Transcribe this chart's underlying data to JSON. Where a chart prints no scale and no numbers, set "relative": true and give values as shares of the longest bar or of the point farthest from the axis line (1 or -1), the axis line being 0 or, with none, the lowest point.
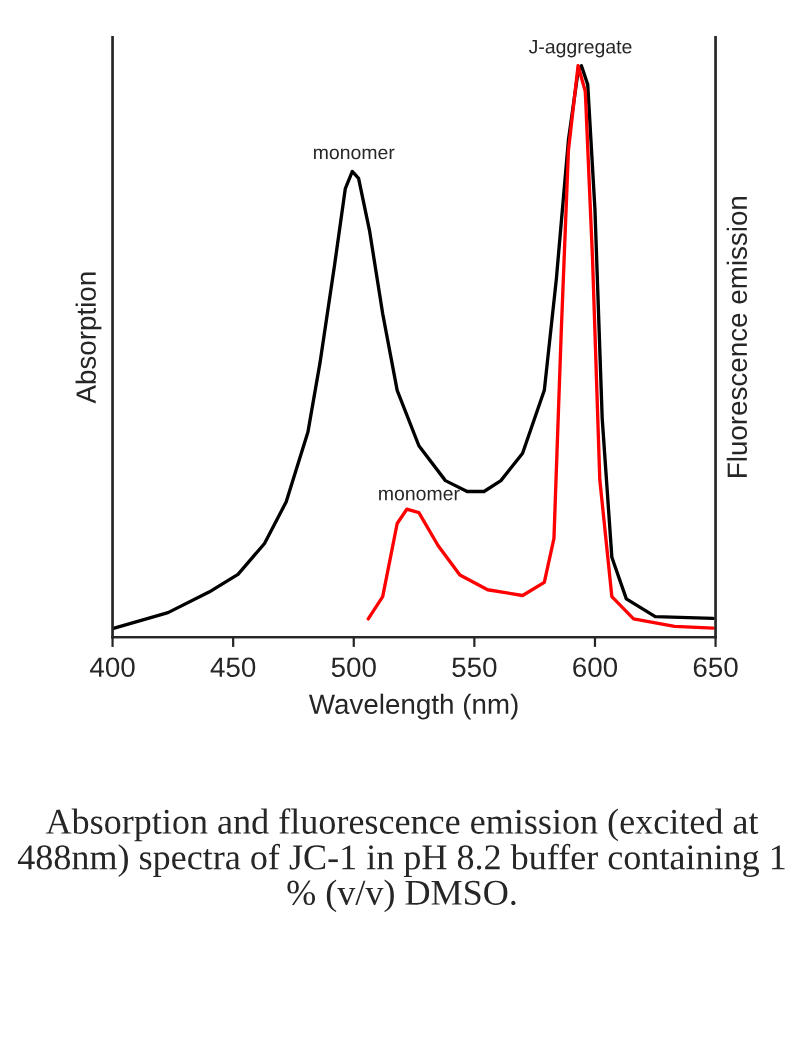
{
  "chart_data": {
    "type": "line",
    "relative": true,
    "xlabel": "Wavelength (nm)",
    "ylabel": "Absorption",
    "y2label": "Fluorescence emission",
    "xlim": [
      400,
      650
    ],
    "xticks": [
      400,
      450,
      500,
      550,
      600,
      650
    ],
    "tick_labels": "x",
    "grid": false,
    "legend": false,
    "marker": "none",
    "line_style": "solid",
    "series": [
      {
        "color": "#000000",
        "x": [
          400,
          423,
          440,
          452,
          463,
          472,
          481,
          486,
          492,
          496.5,
          499.4,
          502,
          506.6,
          512,
          518,
          527,
          538,
          547,
          554,
          561,
          570,
          579,
          584,
          589,
          593,
          594.4,
          597,
          600,
          603,
          607,
          613,
          625,
          649
        ],
        "values": [
          0.015,
          0.043,
          0.079,
          0.11,
          0.164,
          0.237,
          0.359,
          0.48,
          0.65,
          0.785,
          0.815,
          0.803,
          0.71,
          0.566,
          0.432,
          0.335,
          0.274,
          0.255,
          0.255,
          0.274,
          0.322,
          0.432,
          0.627,
          0.87,
          0.99,
          1.0,
          0.967,
          0.748,
          0.383,
          0.14,
          0.067,
          0.036,
          0.033
        ]
      },
      {
        "color": "#ff0000",
        "axis": "y2",
        "x": [
          506,
          512,
          518,
          522,
          527,
          535,
          544,
          555.5,
          570,
          579,
          583,
          586,
          589,
          593,
          596,
          599,
          602,
          607,
          616,
          633,
          649
        ],
        "values": [
          0.032,
          0.071,
          0.199,
          0.224,
          0.218,
          0.16,
          0.109,
          0.083,
          0.073,
          0.096,
          0.173,
          0.532,
          0.852,
          1.0,
          0.955,
          0.661,
          0.276,
          0.071,
          0.032,
          0.019,
          0.016
        ]
      }
    ],
    "annotations": [
      {
        "text": "monomer",
        "x": 500,
        "y": 0.815
      },
      {
        "text": "J-aggregate",
        "x": 594,
        "y": 1.0
      },
      {
        "text": "monomer",
        "x": 527,
        "y": 0.218
      },
      "Absorption and fluorescence emission (excited at 488nm) spectra of JC-1 in pH 8.2 buffer containing 1 % (v/v) DMSO."
    ]
  }
}
